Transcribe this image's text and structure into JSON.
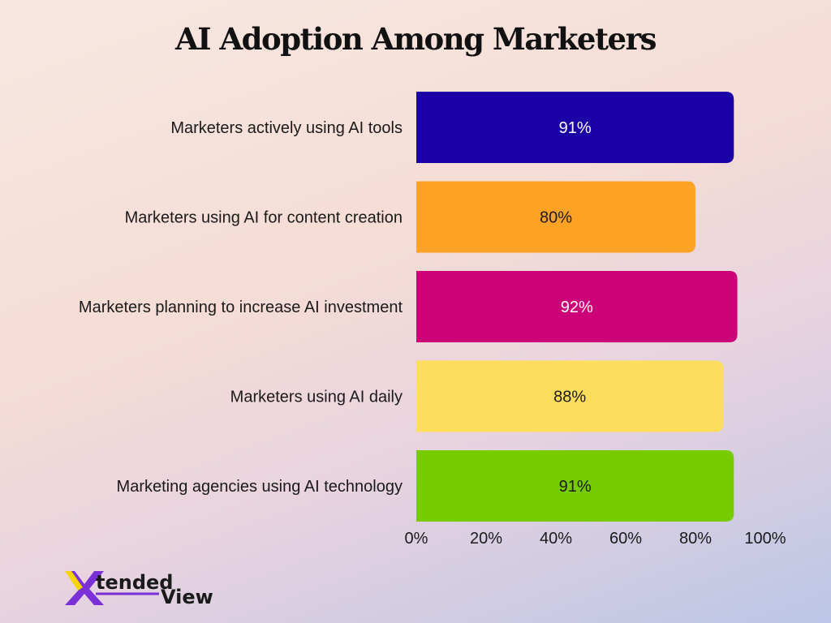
{
  "chart_data": {
    "type": "bar",
    "orientation": "horizontal",
    "title": "AI Adoption Among Marketers",
    "categories": [
      "Marketers actively using AI tools",
      "Marketers using AI for content creation",
      "Marketers planning to increase AI investment",
      "Marketers using AI daily",
      "Marketing agencies using AI technology"
    ],
    "values": [
      91,
      80,
      92,
      88,
      91
    ],
    "value_labels": [
      "91%",
      "80%",
      "92%",
      "88%",
      "91%"
    ],
    "bar_colors": [
      "#1a00a6",
      "#ffa326",
      "#cc0077",
      "#ffdd5c",
      "#77cc00"
    ],
    "value_label_colors": [
      "#ffffff",
      "#1a1a1a",
      "#ffffff",
      "#1a1a1a",
      "#1a1a1a"
    ],
    "xlim": [
      0,
      100
    ],
    "xticks": [
      "0%",
      "20%",
      "40%",
      "60%",
      "80%",
      "100%"
    ],
    "grid": false,
    "legend": "none"
  },
  "brand": {
    "logo_text_main": "tended",
    "logo_text_sub": "View",
    "logo_mark_color": "#7b2fd6"
  }
}
